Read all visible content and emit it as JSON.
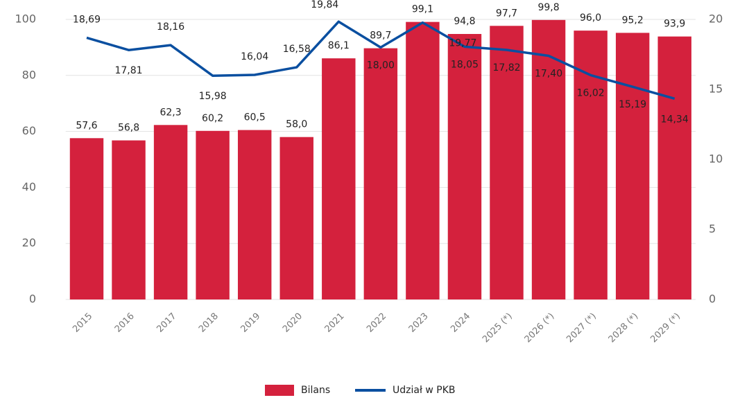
{
  "chart_data": {
    "type": "bar_line",
    "categories": [
      "2015",
      "2016",
      "2017",
      "2018",
      "2019",
      "2020",
      "2021",
      "2022",
      "2023",
      "2024",
      "2025 (*)",
      "2026 (*)",
      "2027 (*)",
      "2028 (*)",
      "2029 (*)"
    ],
    "series": [
      {
        "name": "Bilans",
        "type": "bar",
        "color": "#d4213d",
        "axis": "y",
        "values": [
          57.6,
          56.8,
          62.3,
          60.2,
          60.5,
          58.0,
          86.1,
          89.7,
          99.1,
          94.8,
          97.7,
          99.8,
          96.0,
          95.2,
          93.9
        ],
        "value_labels": [
          "57,6",
          "56,8",
          "62,3",
          "60,2",
          "60,5",
          "58,0",
          "86,1",
          "89,7",
          "99,1",
          "94,8",
          "97,7",
          "99,8",
          "96,0",
          "95,2",
          "93,9"
        ]
      },
      {
        "name": "Udział w PKB",
        "type": "line",
        "color": "#0a4fa0",
        "axis": "y2",
        "values": [
          18.69,
          17.81,
          18.16,
          15.98,
          16.04,
          16.58,
          19.84,
          18.0,
          19.77,
          18.05,
          17.82,
          17.4,
          16.02,
          15.19,
          14.34
        ],
        "value_labels": [
          "18,69",
          "17,81",
          "18,16",
          "15,98",
          "16,04",
          "16,58",
          "19,84",
          "18,00",
          "19,77",
          "18,05",
          "17,82",
          "17,40",
          "16,02",
          "15,19",
          "14,34"
        ]
      }
    ],
    "ylim": [
      0,
      100
    ],
    "yticks": [
      0,
      20,
      40,
      60,
      80,
      100
    ],
    "y2lim": [
      0,
      20
    ],
    "y2ticks": [
      0,
      5,
      10,
      15,
      20
    ],
    "grid": true,
    "legend": "bottom"
  }
}
